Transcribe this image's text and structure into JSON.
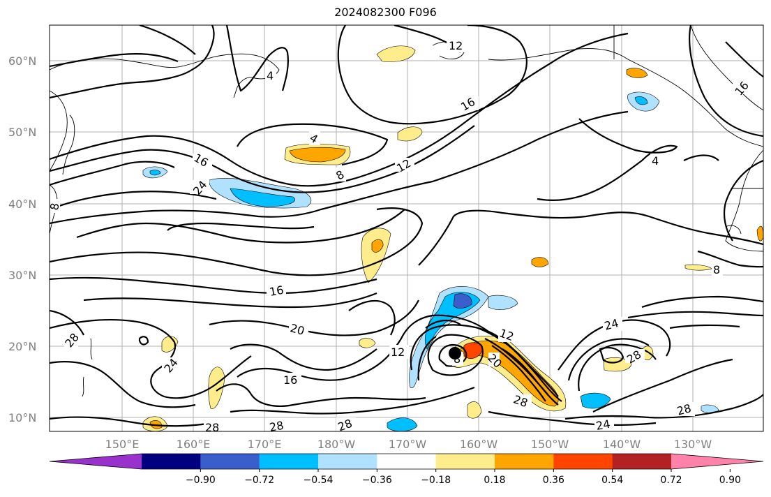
{
  "title": "2024082300 F096",
  "axes": {
    "lat_labels": [
      "60°N",
      "50°N",
      "40°N",
      "30°N",
      "20°N",
      "10°N"
    ],
    "lon_labels": [
      "150°E",
      "160°E",
      "170°E",
      "180°W",
      "170°W",
      "160°W",
      "150°W",
      "140°W",
      "130°W"
    ]
  },
  "colorbar": {
    "ticks": [
      "−0.90",
      "−0.72",
      "−0.54",
      "−0.36",
      "−0.18",
      "0.18",
      "0.36",
      "0.54",
      "0.72",
      "0.90"
    ],
    "colors": [
      "#9932cc",
      "#000080",
      "#3a5fcd",
      "#00bfff",
      "#b0e2ff",
      "#ffffff",
      "#ffec8b",
      "#ffa500",
      "#ff4500",
      "#b22222",
      "#ff82ab"
    ]
  },
  "contour_labels": [
    "12",
    "16",
    "4",
    "4",
    "8",
    "12",
    "16",
    "24",
    "8",
    "4",
    "16",
    "20",
    "16",
    "12",
    "8",
    "12",
    "24",
    "28",
    "28",
    "28",
    "28",
    "24",
    "28",
    "24",
    "28",
    "16",
    "20",
    "8",
    "28"
  ],
  "storm_marker": "storm-center"
}
